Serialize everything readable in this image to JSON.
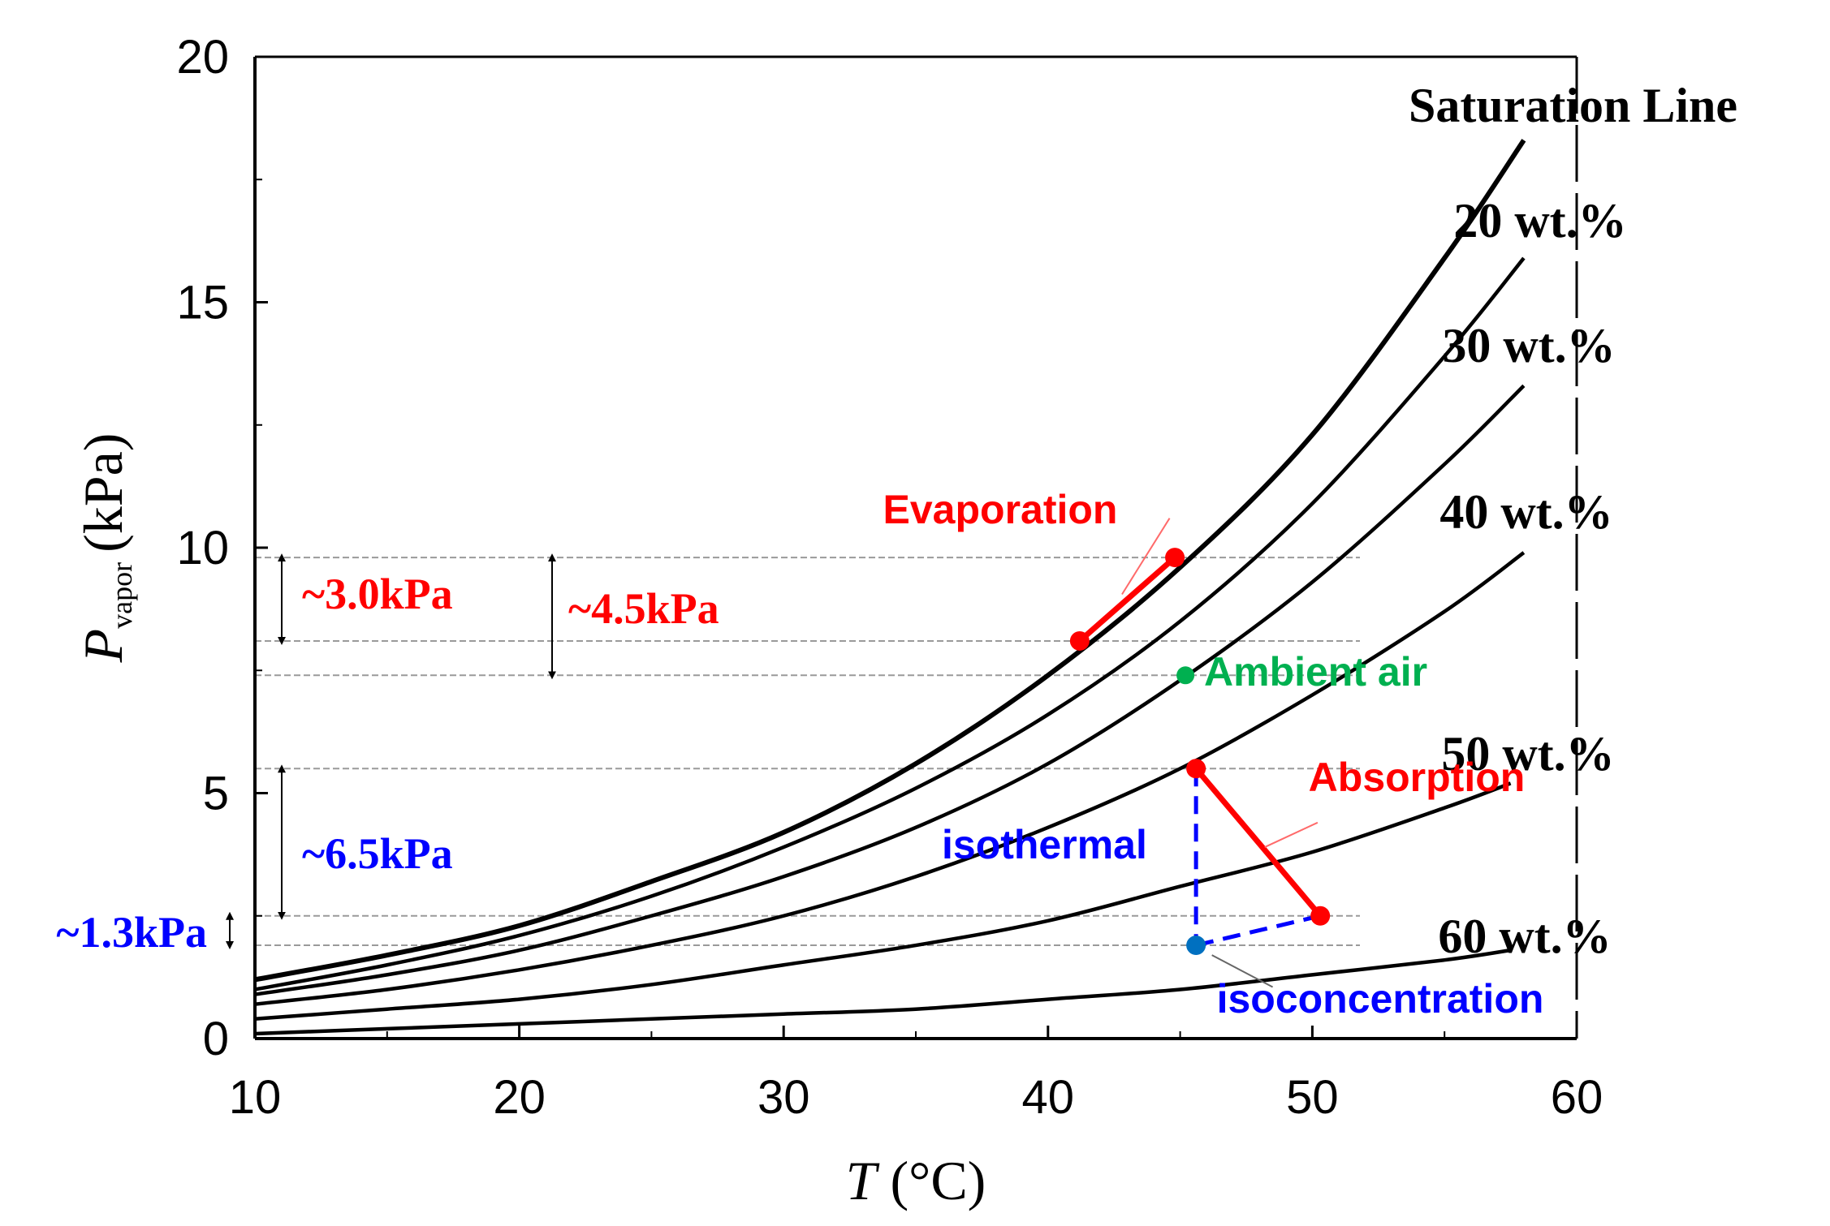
{
  "chart_data": {
    "type": "line",
    "xlabel": "T",
    "xlabel_unit": "(°C)",
    "ylabel": "P",
    "ylabel_sub": "vapor",
    "ylabel_unit": "(kPa)",
    "xlim": [
      10,
      60
    ],
    "ylim": [
      0,
      20
    ],
    "x_ticks": [
      10,
      20,
      30,
      40,
      50,
      60
    ],
    "y_ticks": [
      0,
      5,
      10,
      15,
      20
    ],
    "x_tick_labels": [
      "10",
      "20",
      "30",
      "40",
      "50",
      "60"
    ],
    "y_tick_labels": [
      "0",
      "5",
      "10",
      "15",
      "20"
    ],
    "series": [
      {
        "name": "Saturation Line",
        "color": "#000000",
        "x": [
          10,
          15,
          20,
          25,
          30,
          35,
          40,
          45,
          50,
          55,
          58
        ],
        "y": [
          1.2,
          1.7,
          2.3,
          3.2,
          4.2,
          5.6,
          7.4,
          9.6,
          12.3,
          15.9,
          18.3
        ]
      },
      {
        "name": "20 wt.%",
        "color": "#000000",
        "x": [
          10,
          15,
          20,
          25,
          30,
          35,
          40,
          45,
          50,
          55,
          58
        ],
        "y": [
          1.0,
          1.5,
          2.1,
          2.9,
          3.9,
          5.1,
          6.6,
          8.5,
          10.9,
          13.9,
          15.9
        ]
      },
      {
        "name": "30 wt.%",
        "color": "#000000",
        "x": [
          10,
          15,
          20,
          25,
          30,
          35,
          40,
          45,
          50,
          55,
          58
        ],
        "y": [
          0.9,
          1.3,
          1.8,
          2.5,
          3.3,
          4.3,
          5.6,
          7.3,
          9.3,
          11.7,
          13.3
        ]
      },
      {
        "name": "40 wt.%",
        "color": "#000000",
        "x": [
          10,
          15,
          20,
          25,
          30,
          35,
          40,
          45,
          50,
          55,
          58
        ],
        "y": [
          0.7,
          1.0,
          1.4,
          1.9,
          2.5,
          3.3,
          4.3,
          5.5,
          7.0,
          8.7,
          9.9
        ]
      },
      {
        "name": "50 wt.%",
        "color": "#000000",
        "x": [
          10,
          15,
          20,
          25,
          30,
          35,
          40,
          45,
          50,
          55,
          57.5
        ],
        "y": [
          0.4,
          0.6,
          0.8,
          1.1,
          1.5,
          1.9,
          2.4,
          3.1,
          3.8,
          4.7,
          5.2
        ]
      },
      {
        "name": "60 wt.%",
        "color": "#000000",
        "x": [
          10,
          15,
          20,
          25,
          30,
          35,
          40,
          45,
          50,
          55,
          57.5
        ],
        "y": [
          0.1,
          0.2,
          0.3,
          0.4,
          0.5,
          0.6,
          0.8,
          1.0,
          1.3,
          1.6,
          1.8
        ]
      }
    ],
    "curve_labels": [
      "Saturation Line",
      "20 wt.%",
      "30 wt.%",
      "40 wt.%",
      "50 wt.%",
      "60 wt.%"
    ],
    "processes": {
      "evaporation": {
        "label": "Evaporation",
        "color": "#ff0000",
        "points": [
          [
            41.2,
            8.1
          ],
          [
            44.8,
            9.8
          ]
        ]
      },
      "absorption": {
        "label": "Absorption",
        "color": "#ff0000",
        "points": [
          [
            45.6,
            5.5
          ],
          [
            50.3,
            2.5
          ]
        ]
      },
      "isothermal": {
        "label": "isothermal",
        "color": "#0000ff",
        "points": [
          [
            45.6,
            5.5
          ],
          [
            45.6,
            1.9
          ]
        ]
      },
      "isoconcentration": {
        "label": "isoconcentration",
        "color": "#0000ff",
        "points": [
          [
            45.6,
            1.9
          ],
          [
            50.3,
            2.5
          ]
        ]
      },
      "ambient_air": {
        "label": "Ambient air",
        "color": "#00b050",
        "point": [
          45.2,
          7.4
        ]
      },
      "isoconcentration_point": {
        "color": "#0070c0",
        "point": [
          45.6,
          1.9
        ]
      }
    },
    "reference_lines_y": [
      9.8,
      8.1,
      7.4,
      5.5,
      2.5,
      1.9
    ],
    "differences": [
      {
        "label": "~3.0kPa",
        "color": "#ff0000",
        "from": 8.1,
        "to": 9.8
      },
      {
        "label": "~4.5kPa",
        "color": "#ff0000",
        "from": 7.4,
        "to": 9.8
      },
      {
        "label": "~6.5kPa",
        "color": "#0000ff",
        "from": 2.5,
        "to": 5.5
      },
      {
        "label": "~1.3kPa",
        "color": "#0000ff",
        "from": 1.9,
        "to": 2.5
      }
    ],
    "grid": false
  }
}
